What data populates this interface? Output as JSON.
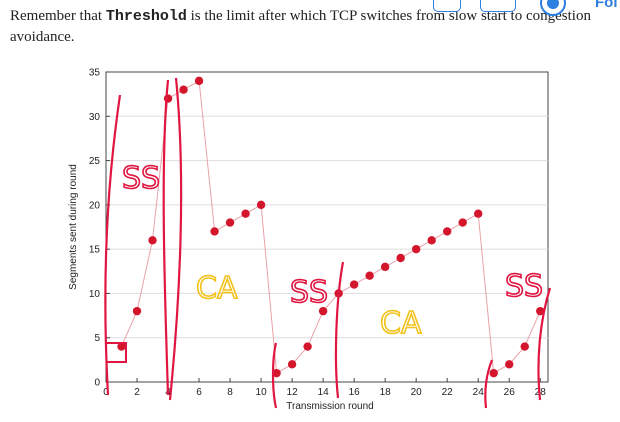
{
  "intro": {
    "part1": "Remember that ",
    "keyword": "Threshold",
    "part2": " is the limit after which TCP switches from slow start to congestion",
    "line2": "avoidance."
  },
  "toolbar": {
    "button_label": "Fol"
  },
  "annotations": {
    "ss_1": "SS",
    "ca_1": "CA",
    "ss_2": "SS",
    "ca_2": "CA",
    "ss_3": "SS"
  },
  "colors": {
    "point": "#d3162c",
    "line": "#e8a1a8",
    "grid": "#dddddd",
    "handwriting_red": "#e01640",
    "handwriting_yellow": "#f2c21b",
    "ui_accent": "#2d7fe0"
  },
  "chart_data": {
    "type": "line",
    "xlabel": "Transmission round",
    "ylabel": "Segments sent during round",
    "xlim": [
      0,
      28.5
    ],
    "ylim": [
      0,
      35
    ],
    "xticks": [
      0,
      2,
      4,
      6,
      8,
      10,
      12,
      14,
      16,
      18,
      20,
      22,
      24,
      26,
      28
    ],
    "yticks": [
      0,
      5,
      10,
      15,
      20,
      25,
      30,
      35
    ],
    "grid": true,
    "x": [
      1,
      2,
      3,
      4,
      5,
      6,
      7,
      8,
      9,
      10,
      11,
      12,
      13,
      14,
      15,
      16,
      17,
      18,
      19,
      20,
      21,
      22,
      23,
      24,
      25,
      26,
      27,
      28
    ],
    "y": [
      4,
      8,
      16,
      32,
      33,
      34,
      17,
      18,
      19,
      20,
      1,
      2,
      4,
      8,
      10,
      11,
      12,
      13,
      14,
      15,
      16,
      17,
      18,
      19,
      1,
      2,
      4,
      8
    ]
  }
}
